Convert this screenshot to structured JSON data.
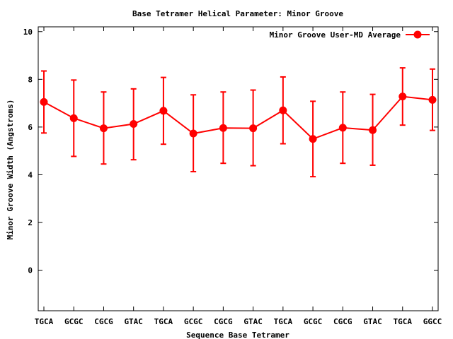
{
  "chart_data": {
    "type": "line",
    "title": "Base Tetramer Helical Parameter: Minor Groove",
    "xlabel": "Sequence Base Tetramer",
    "ylabel": "Minor Groove Width (Angstroms)",
    "ylim": [
      -1.7,
      10.2
    ],
    "yticks": [
      0,
      2,
      4,
      6,
      8,
      10
    ],
    "categories": [
      "TGCA",
      "GCGC",
      "CGCG",
      "GTAC",
      "TGCA",
      "GCGC",
      "CGCG",
      "GTAC",
      "TGCA",
      "GCGC",
      "CGCG",
      "GTAC",
      "TGCA",
      "GGCC"
    ],
    "series": [
      {
        "name": "Minor Groove User-MD Average",
        "color": "#ff0000",
        "values": [
          7.05,
          6.37,
          5.95,
          6.13,
          6.68,
          5.73,
          5.96,
          5.95,
          6.7,
          5.5,
          5.97,
          5.87,
          7.28,
          7.14
        ],
        "error_low": [
          5.75,
          4.77,
          4.45,
          4.63,
          5.28,
          4.13,
          4.48,
          4.38,
          5.3,
          3.92,
          4.48,
          4.4,
          6.08,
          5.86
        ],
        "error_high": [
          8.35,
          7.97,
          7.47,
          7.6,
          8.08,
          7.35,
          7.47,
          7.55,
          8.1,
          7.08,
          7.47,
          7.37,
          8.48,
          8.43
        ]
      }
    ],
    "legend_position": "top-right",
    "grid": false
  }
}
